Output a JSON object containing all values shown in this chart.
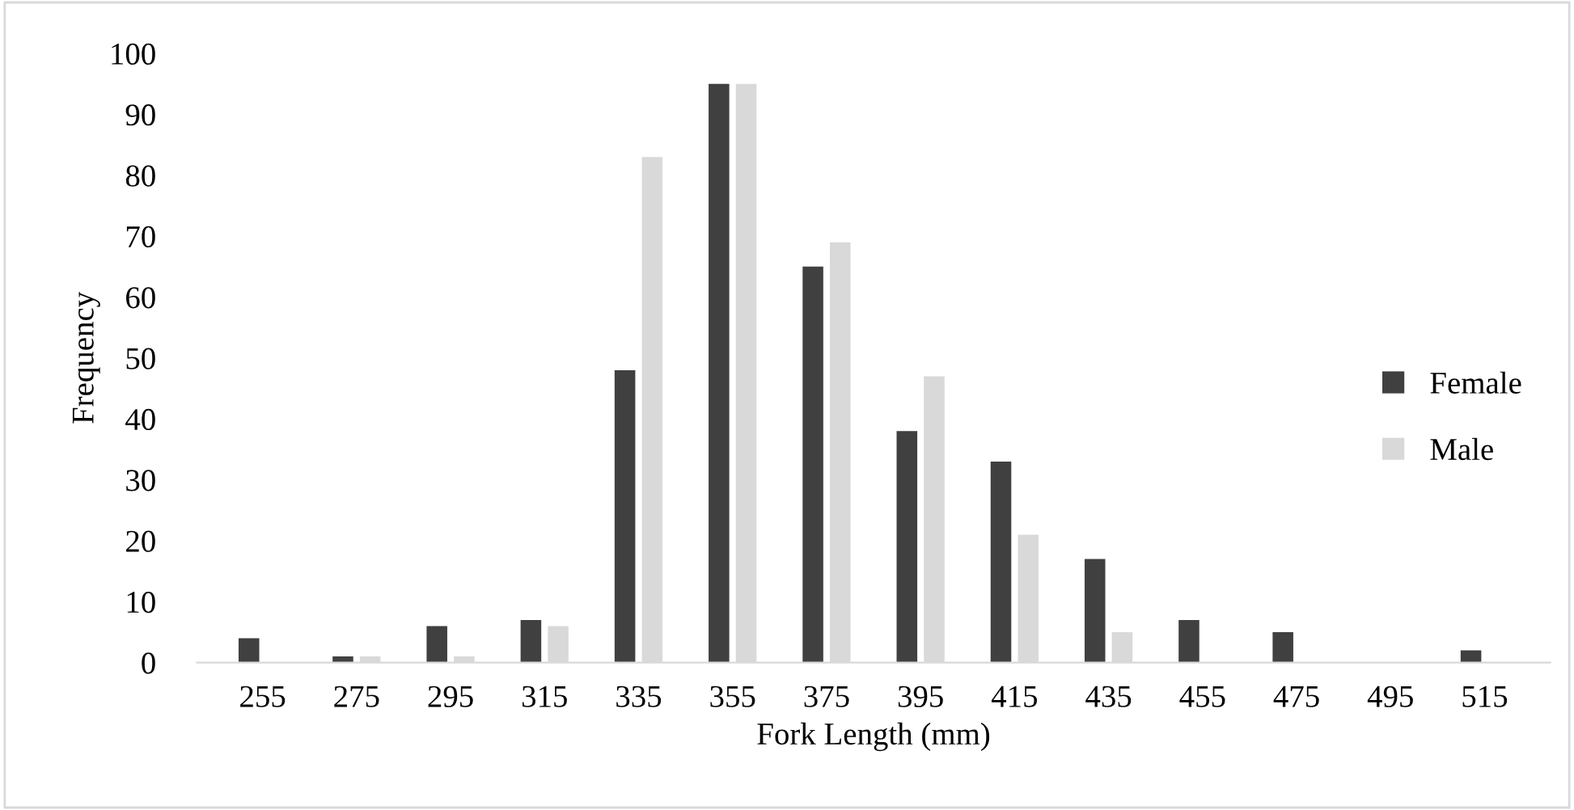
{
  "chart_data": {
    "type": "bar",
    "xlabel": "Fork Length (mm)",
    "ylabel": "Frequency",
    "categories": [
      "255",
      "275",
      "295",
      "315",
      "335",
      "355",
      "375",
      "395",
      "415",
      "435",
      "455",
      "475",
      "495",
      "515"
    ],
    "series": [
      {
        "name": "Female",
        "color": "#404040",
        "values": [
          4,
          1,
          6,
          7,
          48,
          95,
          65,
          38,
          33,
          17,
          7,
          5,
          0,
          2
        ]
      },
      {
        "name": "Male",
        "color": "#d9d9d9",
        "values": [
          0,
          1,
          1,
          6,
          83,
          95,
          69,
          47,
          21,
          5,
          0,
          0,
          0,
          0
        ]
      }
    ],
    "ylim": [
      0,
      100
    ],
    "yticks": [
      0,
      10,
      20,
      30,
      40,
      50,
      60,
      70,
      80,
      90,
      100
    ],
    "grid": false,
    "legend": "right"
  }
}
